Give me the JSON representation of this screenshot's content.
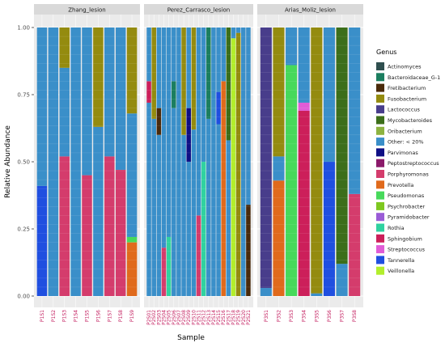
{
  "chart_data": {
    "type": "bar",
    "stacked": true,
    "xlabel": "Sample",
    "ylabel": "Relative Abundance",
    "ylim": [
      0,
      1
    ],
    "yticks": [
      "0.00",
      "0.25",
      "0.50",
      "0.75",
      "1.00"
    ],
    "legend_title": "Genus",
    "legend_position": "right",
    "genus_colors": {
      "Actinomyces": "#2f4f4f",
      "Bacteroidaceae_G-1": "#1b7e5f",
      "Fretibacterium": "#4a2a0a",
      "Fusobacterium": "#948b0f",
      "Lactococcus": "#483d8b",
      "Mycobacteroides": "#3c6e1a",
      "Oribacterium": "#8db340",
      "Other: < 20%": "#3a8fc9",
      "Parvimonas": "#0f0f85",
      "Peptostreptococcus": "#8b1a6a",
      "Porphyromonas": "#d43c6c",
      "Prevotella": "#e06a1c",
      "Pseudomonas": "#47d95b",
      "Psychrobacter": "#7ec820",
      "Pyramidobacter": "#9a5cd6",
      "Rothia": "#30d2a0",
      "Sphingobium": "#cc1f5a",
      "Streptococcus": "#e05cd6",
      "Tannerella": "#1f4fe0",
      "Veillonella": "#b2ee2c"
    },
    "facets": [
      {
        "title": "Zhang_lesion",
        "samples": [
          {
            "name": "P1S1",
            "segments": [
              {
                "genus": "Tannerella",
                "value": 0.41
              },
              {
                "genus": "Other: < 20%",
                "value": 0.59
              }
            ]
          },
          {
            "name": "P1S2",
            "segments": [
              {
                "genus": "Other: < 20%",
                "value": 1.0
              }
            ]
          },
          {
            "name": "P1S3",
            "segments": [
              {
                "genus": "Porphyromonas",
                "value": 0.52
              },
              {
                "genus": "Other: < 20%",
                "value": 0.33
              },
              {
                "genus": "Fusobacterium",
                "value": 0.15
              }
            ]
          },
          {
            "name": "P1S4",
            "segments": [
              {
                "genus": "Other: < 20%",
                "value": 1.0
              }
            ]
          },
          {
            "name": "P1S5",
            "segments": [
              {
                "genus": "Porphyromonas",
                "value": 0.45
              },
              {
                "genus": "Other: < 20%",
                "value": 0.55
              }
            ]
          },
          {
            "name": "P1S6",
            "segments": [
              {
                "genus": "Other: < 20%",
                "value": 0.63
              },
              {
                "genus": "Fusobacterium",
                "value": 0.37
              }
            ]
          },
          {
            "name": "P1S7",
            "segments": [
              {
                "genus": "Porphyromonas",
                "value": 0.52
              },
              {
                "genus": "Other: < 20%",
                "value": 0.48
              }
            ]
          },
          {
            "name": "P1S8",
            "segments": [
              {
                "genus": "Porphyromonas",
                "value": 0.47
              },
              {
                "genus": "Other: < 20%",
                "value": 0.53
              }
            ]
          },
          {
            "name": "P1S9",
            "segments": [
              {
                "genus": "Prevotella",
                "value": 0.2
              },
              {
                "genus": "Pseudomonas",
                "value": 0.02
              },
              {
                "genus": "Other: < 20%",
                "value": 0.46
              },
              {
                "genus": "Fusobacterium",
                "value": 0.32
              }
            ]
          }
        ]
      },
      {
        "title": "Perez_Carrasco_lesion",
        "samples": [
          {
            "name": "P2S01",
            "segments": [
              {
                "genus": "Other: < 20%",
                "value": 0.72
              },
              {
                "genus": "Sphingobium",
                "value": 0.08
              },
              {
                "genus": "Other: < 20%",
                "value": 0.2
              }
            ]
          },
          {
            "name": "P2S02",
            "segments": [
              {
                "genus": "Other: < 20%",
                "value": 0.66
              },
              {
                "genus": "Fusobacterium",
                "value": 0.34
              }
            ]
          },
          {
            "name": "P2S03",
            "segments": [
              {
                "genus": "Other: < 20%",
                "value": 0.6
              },
              {
                "genus": "Fretibacterium",
                "value": 0.1
              },
              {
                "genus": "Other: < 20%",
                "value": 0.3
              }
            ]
          },
          {
            "name": "P2S04",
            "segments": [
              {
                "genus": "Porphyromonas",
                "value": 0.18
              },
              {
                "genus": "Other: < 20%",
                "value": 0.82
              }
            ]
          },
          {
            "name": "P2S05",
            "segments": [
              {
                "genus": "Rothia",
                "value": 0.22
              },
              {
                "genus": "Other: < 20%",
                "value": 0.78
              }
            ]
          },
          {
            "name": "P2S06",
            "segments": [
              {
                "genus": "Other: < 20%",
                "value": 0.7
              },
              {
                "genus": "Bacteroidaceae_G-1",
                "value": 0.1
              },
              {
                "genus": "Other: < 20%",
                "value": 0.2
              }
            ]
          },
          {
            "name": "P2S07",
            "segments": [
              {
                "genus": "Other: < 20%",
                "value": 1.0
              }
            ]
          },
          {
            "name": "P2S08",
            "segments": [
              {
                "genus": "Other: < 20%",
                "value": 0.6
              },
              {
                "genus": "Fusobacterium",
                "value": 0.4
              }
            ]
          },
          {
            "name": "P2S09",
            "segments": [
              {
                "genus": "Other: < 20%",
                "value": 0.5
              },
              {
                "genus": "Parvimonas",
                "value": 0.2
              },
              {
                "genus": "Other: < 20%",
                "value": 0.3
              }
            ]
          },
          {
            "name": "P2S10",
            "segments": [
              {
                "genus": "Other: < 20%",
                "value": 0.62
              },
              {
                "genus": "Fusobacterium",
                "value": 0.38
              }
            ]
          },
          {
            "name": "P2S11",
            "segments": [
              {
                "genus": "Porphyromonas",
                "value": 0.3
              },
              {
                "genus": "Other: < 20%",
                "value": 0.7
              }
            ]
          },
          {
            "name": "P2S12",
            "segments": [
              {
                "genus": "Rothia",
                "value": 0.5
              },
              {
                "genus": "Other: < 20%",
                "value": 0.5
              }
            ]
          },
          {
            "name": "P2S13",
            "segments": [
              {
                "genus": "Other: < 20%",
                "value": 0.66
              },
              {
                "genus": "Bacteroidaceae_G-1",
                "value": 0.34
              }
            ]
          },
          {
            "name": "P2S14",
            "segments": [
              {
                "genus": "Other: < 20%",
                "value": 1.0
              }
            ]
          },
          {
            "name": "P2S15",
            "segments": [
              {
                "genus": "Other: < 20%",
                "value": 0.64
              },
              {
                "genus": "Tannerella",
                "value": 0.12
              },
              {
                "genus": "Other: < 20%",
                "value": 0.24
              }
            ]
          },
          {
            "name": "P2S16",
            "segments": [
              {
                "genus": "Prevotella",
                "value": 0.8
              },
              {
                "genus": "Other: < 20%",
                "value": 0.2
              }
            ]
          },
          {
            "name": "P2S17",
            "segments": [
              {
                "genus": "Other: < 20%",
                "value": 0.58
              },
              {
                "genus": "Mycobacteroides",
                "value": 0.42
              }
            ]
          },
          {
            "name": "P2S18",
            "segments": [
              {
                "genus": "Veillonella",
                "value": 0.96
              },
              {
                "genus": "Other: < 20%",
                "value": 0.04
              }
            ]
          },
          {
            "name": "P2S19",
            "segments": [
              {
                "genus": "Fusobacterium",
                "value": 0.98
              },
              {
                "genus": "Other: < 20%",
                "value": 0.02
              }
            ]
          },
          {
            "name": "P2S20",
            "segments": [
              {
                "genus": "Other: < 20%",
                "value": 1.0
              }
            ]
          },
          {
            "name": "P2S21",
            "segments": [
              {
                "genus": "Fretibacterium",
                "value": 0.34
              },
              {
                "genus": "Other: < 20%",
                "value": 0.66
              }
            ]
          }
        ]
      },
      {
        "title": "Arias_Moliz_lesion",
        "samples": [
          {
            "name": "P3S1",
            "segments": [
              {
                "genus": "Other: < 20%",
                "value": 0.03
              },
              {
                "genus": "Lactococcus",
                "value": 0.97
              }
            ]
          },
          {
            "name": "P3S2",
            "segments": [
              {
                "genus": "Prevotella",
                "value": 0.43
              },
              {
                "genus": "Other: < 20%",
                "value": 0.09
              },
              {
                "genus": "Fusobacterium",
                "value": 0.48
              }
            ]
          },
          {
            "name": "P3S3",
            "segments": [
              {
                "genus": "Pseudomonas",
                "value": 0.86
              },
              {
                "genus": "Other: < 20%",
                "value": 0.14
              }
            ]
          },
          {
            "name": "P3S4",
            "segments": [
              {
                "genus": "Sphingobium",
                "value": 0.69
              },
              {
                "genus": "Streptococcus",
                "value": 0.03
              },
              {
                "genus": "Other: < 20%",
                "value": 0.28
              }
            ]
          },
          {
            "name": "P3S5",
            "segments": [
              {
                "genus": "Other: < 20%",
                "value": 0.01
              },
              {
                "genus": "Fusobacterium",
                "value": 0.99
              }
            ]
          },
          {
            "name": "P3S6",
            "segments": [
              {
                "genus": "Tannerella",
                "value": 0.5
              },
              {
                "genus": "Other: < 20%",
                "value": 0.5
              }
            ]
          },
          {
            "name": "P3S7",
            "segments": [
              {
                "genus": "Other: < 20%",
                "value": 0.12
              },
              {
                "genus": "Mycobacteroides",
                "value": 0.88
              }
            ]
          },
          {
            "name": "P3S8",
            "segments": [
              {
                "genus": "Porphyromonas",
                "value": 0.38
              },
              {
                "genus": "Other: < 20%",
                "value": 0.62
              }
            ]
          }
        ]
      }
    ]
  }
}
